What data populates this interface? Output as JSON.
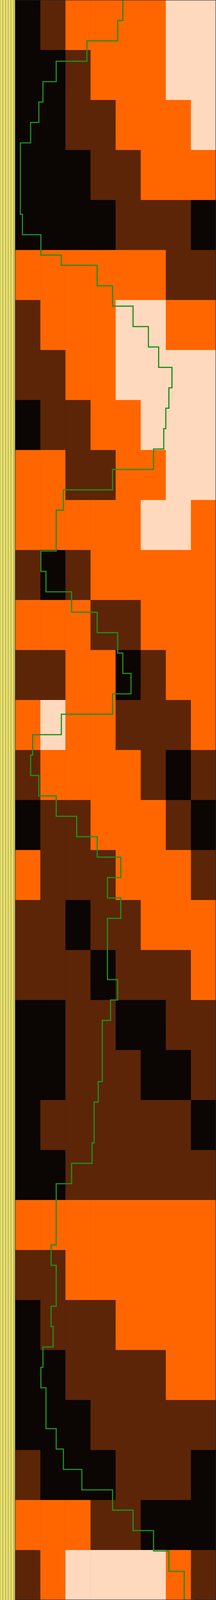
{
  "chart_data": {
    "type": "heatmap",
    "tick_labels": false,
    "grid": false,
    "xlim": [
      15,
      211
    ],
    "ylim": [
      0,
      1568
    ],
    "cells": [
      [
        0,
        1,
        2,
        2,
        2,
        2,
        3,
        3
      ],
      [
        0,
        0,
        1,
        2,
        2,
        2,
        3,
        3
      ],
      [
        0,
        0,
        1,
        1,
        2,
        2,
        2,
        3
      ],
      [
        0,
        0,
        0,
        1,
        1,
        2,
        2,
        2
      ],
      [
        0,
        0,
        0,
        0,
        1,
        1,
        1,
        0
      ],
      [
        2,
        2,
        2,
        2,
        2,
        2,
        1,
        1
      ],
      [
        1,
        2,
        2,
        2,
        3,
        3,
        2,
        2
      ],
      [
        1,
        1,
        2,
        2,
        3,
        3,
        3,
        3
      ],
      [
        0,
        1,
        1,
        2,
        2,
        3,
        3,
        3
      ],
      [
        2,
        2,
        1,
        1,
        2,
        2,
        3,
        3
      ],
      [
        2,
        2,
        2,
        2,
        2,
        3,
        3,
        2
      ],
      [
        1,
        0,
        1,
        2,
        2,
        2,
        2,
        2
      ],
      [
        2,
        2,
        2,
        1,
        1,
        2,
        2,
        2
      ],
      [
        1,
        1,
        2,
        2,
        0,
        1,
        2,
        2
      ],
      [
        2,
        3,
        2,
        2,
        1,
        1,
        1,
        2
      ],
      [
        1,
        2,
        2,
        2,
        2,
        1,
        0,
        1
      ],
      [
        0,
        1,
        1,
        2,
        2,
        2,
        1,
        0
      ],
      [
        2,
        1,
        1,
        1,
        2,
        2,
        2,
        1
      ],
      [
        1,
        1,
        0,
        1,
        1,
        2,
        2,
        2
      ],
      [
        1,
        1,
        1,
        0,
        1,
        1,
        1,
        2
      ],
      [
        0,
        0,
        1,
        1,
        0,
        0,
        1,
        1
      ],
      [
        0,
        0,
        1,
        1,
        1,
        0,
        0,
        1
      ],
      [
        0,
        1,
        1,
        1,
        1,
        1,
        1,
        0
      ],
      [
        0,
        0,
        1,
        1,
        1,
        1,
        1,
        1
      ],
      [
        2,
        2,
        2,
        2,
        2,
        2,
        2,
        2
      ],
      [
        1,
        1,
        2,
        2,
        2,
        2,
        2,
        2
      ],
      [
        0,
        1,
        1,
        1,
        2,
        2,
        2,
        2
      ],
      [
        0,
        0,
        1,
        1,
        1,
        1,
        2,
        2
      ],
      [
        0,
        0,
        0,
        1,
        1,
        1,
        1,
        1
      ],
      [
        1,
        0,
        0,
        0,
        1,
        1,
        1,
        0
      ],
      [
        2,
        2,
        2,
        1,
        1,
        0,
        0,
        0
      ],
      [
        1,
        2,
        3,
        3,
        3,
        3,
        2,
        1
      ]
    ],
    "series": [
      {
        "color": "#1f8f1f",
        "line_style": "step",
        "x": [
          0,
          20,
          40,
          60,
          80,
          100,
          120,
          140,
          160,
          190,
          210,
          230,
          250,
          260,
          280,
          300,
          320,
          340,
          360,
          380,
          400,
          420,
          440,
          460,
          480,
          500,
          520,
          540,
          560,
          580,
          600,
          620,
          640,
          660,
          680,
          700,
          720,
          740,
          760,
          780,
          800,
          820,
          840,
          860,
          880,
          900,
          920,
          940,
          960,
          980,
          1000,
          1020,
          1040,
          1060,
          1080,
          1100,
          1120,
          1140,
          1160,
          1180,
          1200,
          1220,
          1240,
          1260,
          1280,
          1300,
          1320,
          1340,
          1360,
          1380,
          1400,
          1420,
          1440,
          1460,
          1480,
          1500,
          1520,
          1540,
          1568
        ],
        "values": [
          120,
          115,
          85,
          55,
          42,
          38,
          30,
          20,
          20,
          20,
          22,
          40,
          60,
          95,
          110,
          130,
          145,
          155,
          168,
          165,
          162,
          160,
          150,
          110,
          62,
          55,
          55,
          40,
          45,
          70,
          95,
          115,
          120,
          128,
          110,
          60,
          32,
          30,
          38,
          55,
          75,
          95,
          118,
          105,
          118,
          105,
          105,
          105,
          115,
          108,
          100,
          100,
          100,
          96,
          92,
          92,
          90,
          70,
          55,
          55,
          55,
          50,
          55,
          55,
          50,
          52,
          42,
          40,
          45,
          45,
          55,
          62,
          80,
          110,
          130,
          150,
          165,
          180,
          190
        ]
      }
    ]
  }
}
